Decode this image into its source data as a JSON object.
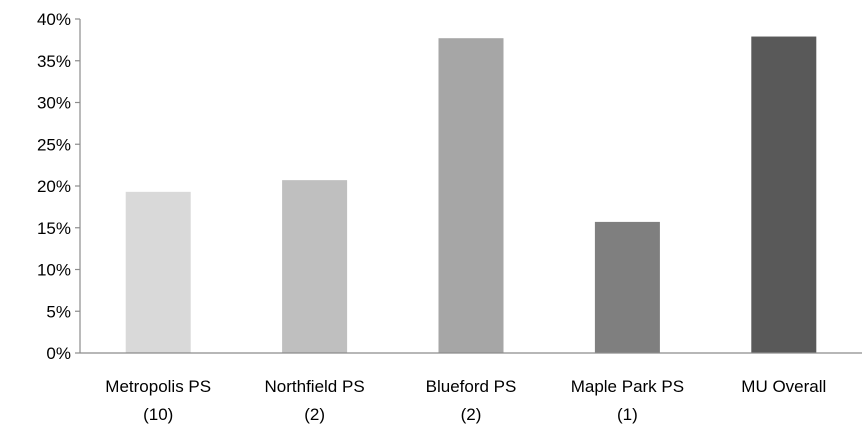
{
  "chart_data": {
    "type": "bar",
    "title": "",
    "xlabel": "",
    "ylabel": "",
    "ylim": [
      0,
      40
    ],
    "y_ticks": [
      {
        "value": 0,
        "label": "0%"
      },
      {
        "value": 5,
        "label": "5%"
      },
      {
        "value": 10,
        "label": "10%"
      },
      {
        "value": 15,
        "label": "15%"
      },
      {
        "value": 20,
        "label": "20%"
      },
      {
        "value": 25,
        "label": "25%"
      },
      {
        "value": 30,
        "label": "30%"
      },
      {
        "value": 35,
        "label": "35%"
      },
      {
        "value": 40,
        "label": "40%"
      }
    ],
    "categories": [
      {
        "line1": "Metropolis PS",
        "line2": "(10)"
      },
      {
        "line1": "Northfield PS",
        "line2": "(2)"
      },
      {
        "line1": "Blueford PS",
        "line2": "(2)"
      },
      {
        "line1": "Maple Park PS",
        "line2": "(1)"
      },
      {
        "line1": "MU Overall",
        "line2": ""
      }
    ],
    "values": [
      19.3,
      20.7,
      37.7,
      15.7,
      37.9
    ],
    "bar_colors": [
      "#d9d9d9",
      "#bfbfbf",
      "#a6a6a6",
      "#7f7f7f",
      "#595959"
    ],
    "grid": false,
    "legend": "none"
  }
}
